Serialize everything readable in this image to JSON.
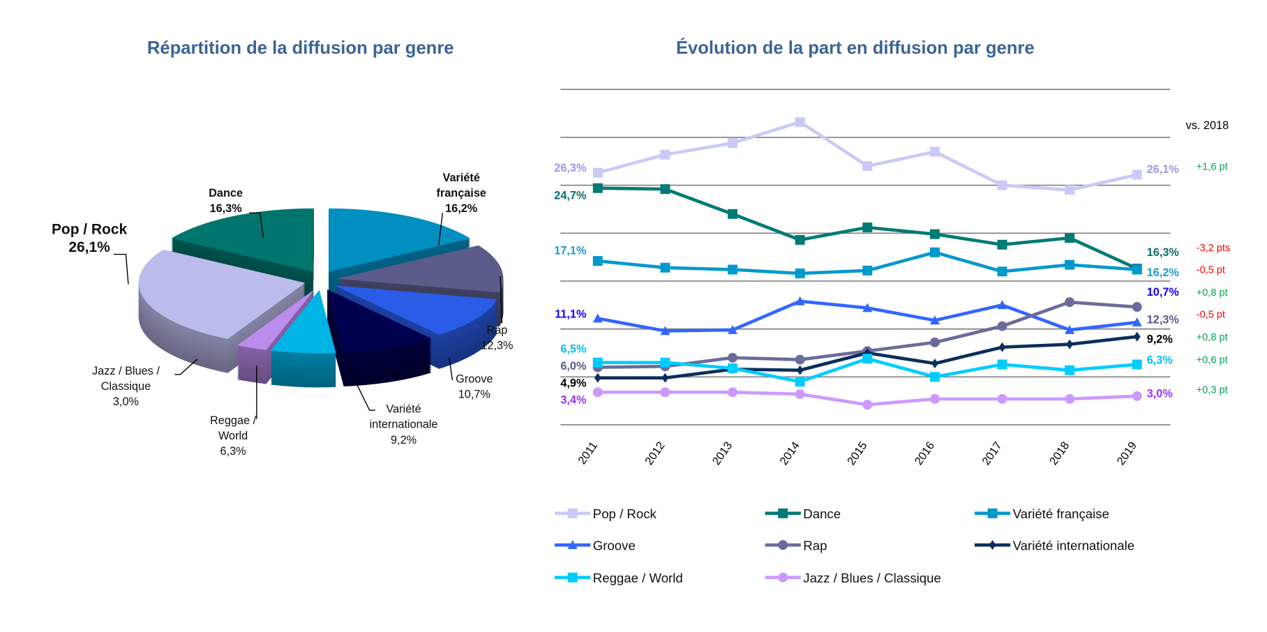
{
  "colors": {
    "title": "#3B6496",
    "positive": "#00A550",
    "negative": "#FF0000",
    "grid": "#808080"
  },
  "chart_data": [
    {
      "type": "pie",
      "style": "3d-exploded",
      "title": "Répartition de la diffusion par genre",
      "slices": [
        {
          "key": "varfr",
          "label_lines": [
            "Variété",
            "française"
          ],
          "value_label": "16,2%",
          "value": 16.2,
          "color": "#008FC0",
          "bold": true
        },
        {
          "key": "rap",
          "label_lines": [
            "Rap"
          ],
          "value_label": "12,3%",
          "value": 12.3,
          "color": "#5C5C8A",
          "bold": false
        },
        {
          "key": "groove",
          "label_lines": [
            "Groove"
          ],
          "value_label": "10,7%",
          "value": 10.7,
          "color": "#2A5CE8",
          "bold": false
        },
        {
          "key": "varint",
          "label_lines": [
            "Variété",
            "internationale"
          ],
          "value_label": "9,2%",
          "value": 9.2,
          "color": "#00004F",
          "bold": false
        },
        {
          "key": "reggae",
          "label_lines": [
            "Reggae /",
            "World"
          ],
          "value_label": "6,3%",
          "value": 6.3,
          "color": "#00B4E6",
          "bold": false
        },
        {
          "key": "jazz",
          "label_lines": [
            "Jazz / Blues /",
            "Classique"
          ],
          "value_label": "3,0%",
          "value": 3.0,
          "color": "#BC8CEC",
          "bold": false
        },
        {
          "key": "pop",
          "label_lines": [
            "Pop / Rock"
          ],
          "value_label": "26,1%",
          "value": 26.1,
          "color": "#BCBCEC",
          "bold": true
        },
        {
          "key": "dance",
          "label_lines": [
            "Dance"
          ],
          "value_label": "16,3%",
          "value": 16.3,
          "color": "#00756E",
          "bold": true
        }
      ]
    },
    {
      "type": "line",
      "title": "Évolution de la part en diffusion par genre",
      "x": [
        "2011",
        "2012",
        "2013",
        "2014",
        "2015",
        "2016",
        "2017",
        "2018",
        "2019"
      ],
      "ylim": [
        0,
        35
      ],
      "grid": true,
      "comparison_header": "vs. 2018",
      "legend_position": "bottom",
      "series": [
        {
          "name": "Pop / Rock",
          "color": "#CACAF7",
          "label_color": "#9A9AE6",
          "marker": "square",
          "values": [
            26.3,
            28.2,
            29.4,
            31.6,
            27.0,
            28.5,
            25.0,
            24.5,
            26.1
          ],
          "start_label": "26,3%",
          "end_label": "26,1%",
          "delta": "+1,6 pt",
          "delta_sign": "positive"
        },
        {
          "name": "Dance",
          "color": "#007A74",
          "label_color": "#0B6E6A",
          "marker": "square",
          "values": [
            24.7,
            24.6,
            22.0,
            19.3,
            20.6,
            19.9,
            18.8,
            19.5,
            16.3
          ],
          "start_label": "24,7%",
          "end_label": "16,3%",
          "delta": "-3,2 pts",
          "delta_sign": "negative"
        },
        {
          "name": "Variété française",
          "color": "#0099CC",
          "label_color": "#1E9BD7",
          "marker": "square",
          "values": [
            17.1,
            16.4,
            16.2,
            15.8,
            16.1,
            18.0,
            16.0,
            16.7,
            16.2
          ],
          "start_label": "17,1%",
          "end_label": "16,2%",
          "delta": "-0,5 pt",
          "delta_sign": "negative"
        },
        {
          "name": "Groove",
          "color": "#3366FF",
          "label_color": "#1400FF",
          "marker": "triangle",
          "values": [
            11.1,
            9.8,
            9.9,
            12.9,
            12.2,
            10.9,
            12.5,
            9.9,
            10.7
          ],
          "start_label": "11,1%",
          "end_label": "10,7%",
          "delta": "+0,8 pt",
          "delta_sign": "positive"
        },
        {
          "name": "Rap",
          "color": "#6B6B9B",
          "label_color": "#5A5A8C",
          "marker": "circle",
          "values": [
            6.0,
            6.1,
            7.0,
            6.8,
            7.7,
            8.6,
            10.3,
            12.8,
            12.3
          ],
          "start_label": "6,0%",
          "end_label": "12,3%",
          "delta": "-0,5 pt",
          "delta_sign": "negative"
        },
        {
          "name": "Variété internationale",
          "color": "#0B2E5C",
          "label_color": "#000000",
          "marker": "diamond",
          "values": [
            4.9,
            4.9,
            5.8,
            5.7,
            7.5,
            6.4,
            8.1,
            8.4,
            9.2
          ],
          "start_label": "4,9%",
          "end_label": "9,2%",
          "delta": "+0,8 pt",
          "delta_sign": "positive"
        },
        {
          "name": "Reggae / World",
          "color": "#00CCFF",
          "label_color": "#00BFF5",
          "marker": "square",
          "values": [
            6.5,
            6.5,
            5.9,
            4.5,
            6.9,
            5.0,
            6.3,
            5.7,
            6.3
          ],
          "start_label": "6,5%",
          "end_label": "6,3%",
          "delta": "+0,6 pt",
          "delta_sign": "positive"
        },
        {
          "name": "Jazz / Blues / Classique",
          "color": "#CC99FF",
          "label_color": "#9933FF",
          "marker": "circle",
          "values": [
            3.4,
            3.4,
            3.4,
            3.2,
            2.1,
            2.7,
            2.7,
            2.7,
            3.0
          ],
          "start_label": "3,4%",
          "end_label": "3,0%",
          "delta": "+0,3 pt",
          "delta_sign": "positive"
        }
      ]
    }
  ]
}
